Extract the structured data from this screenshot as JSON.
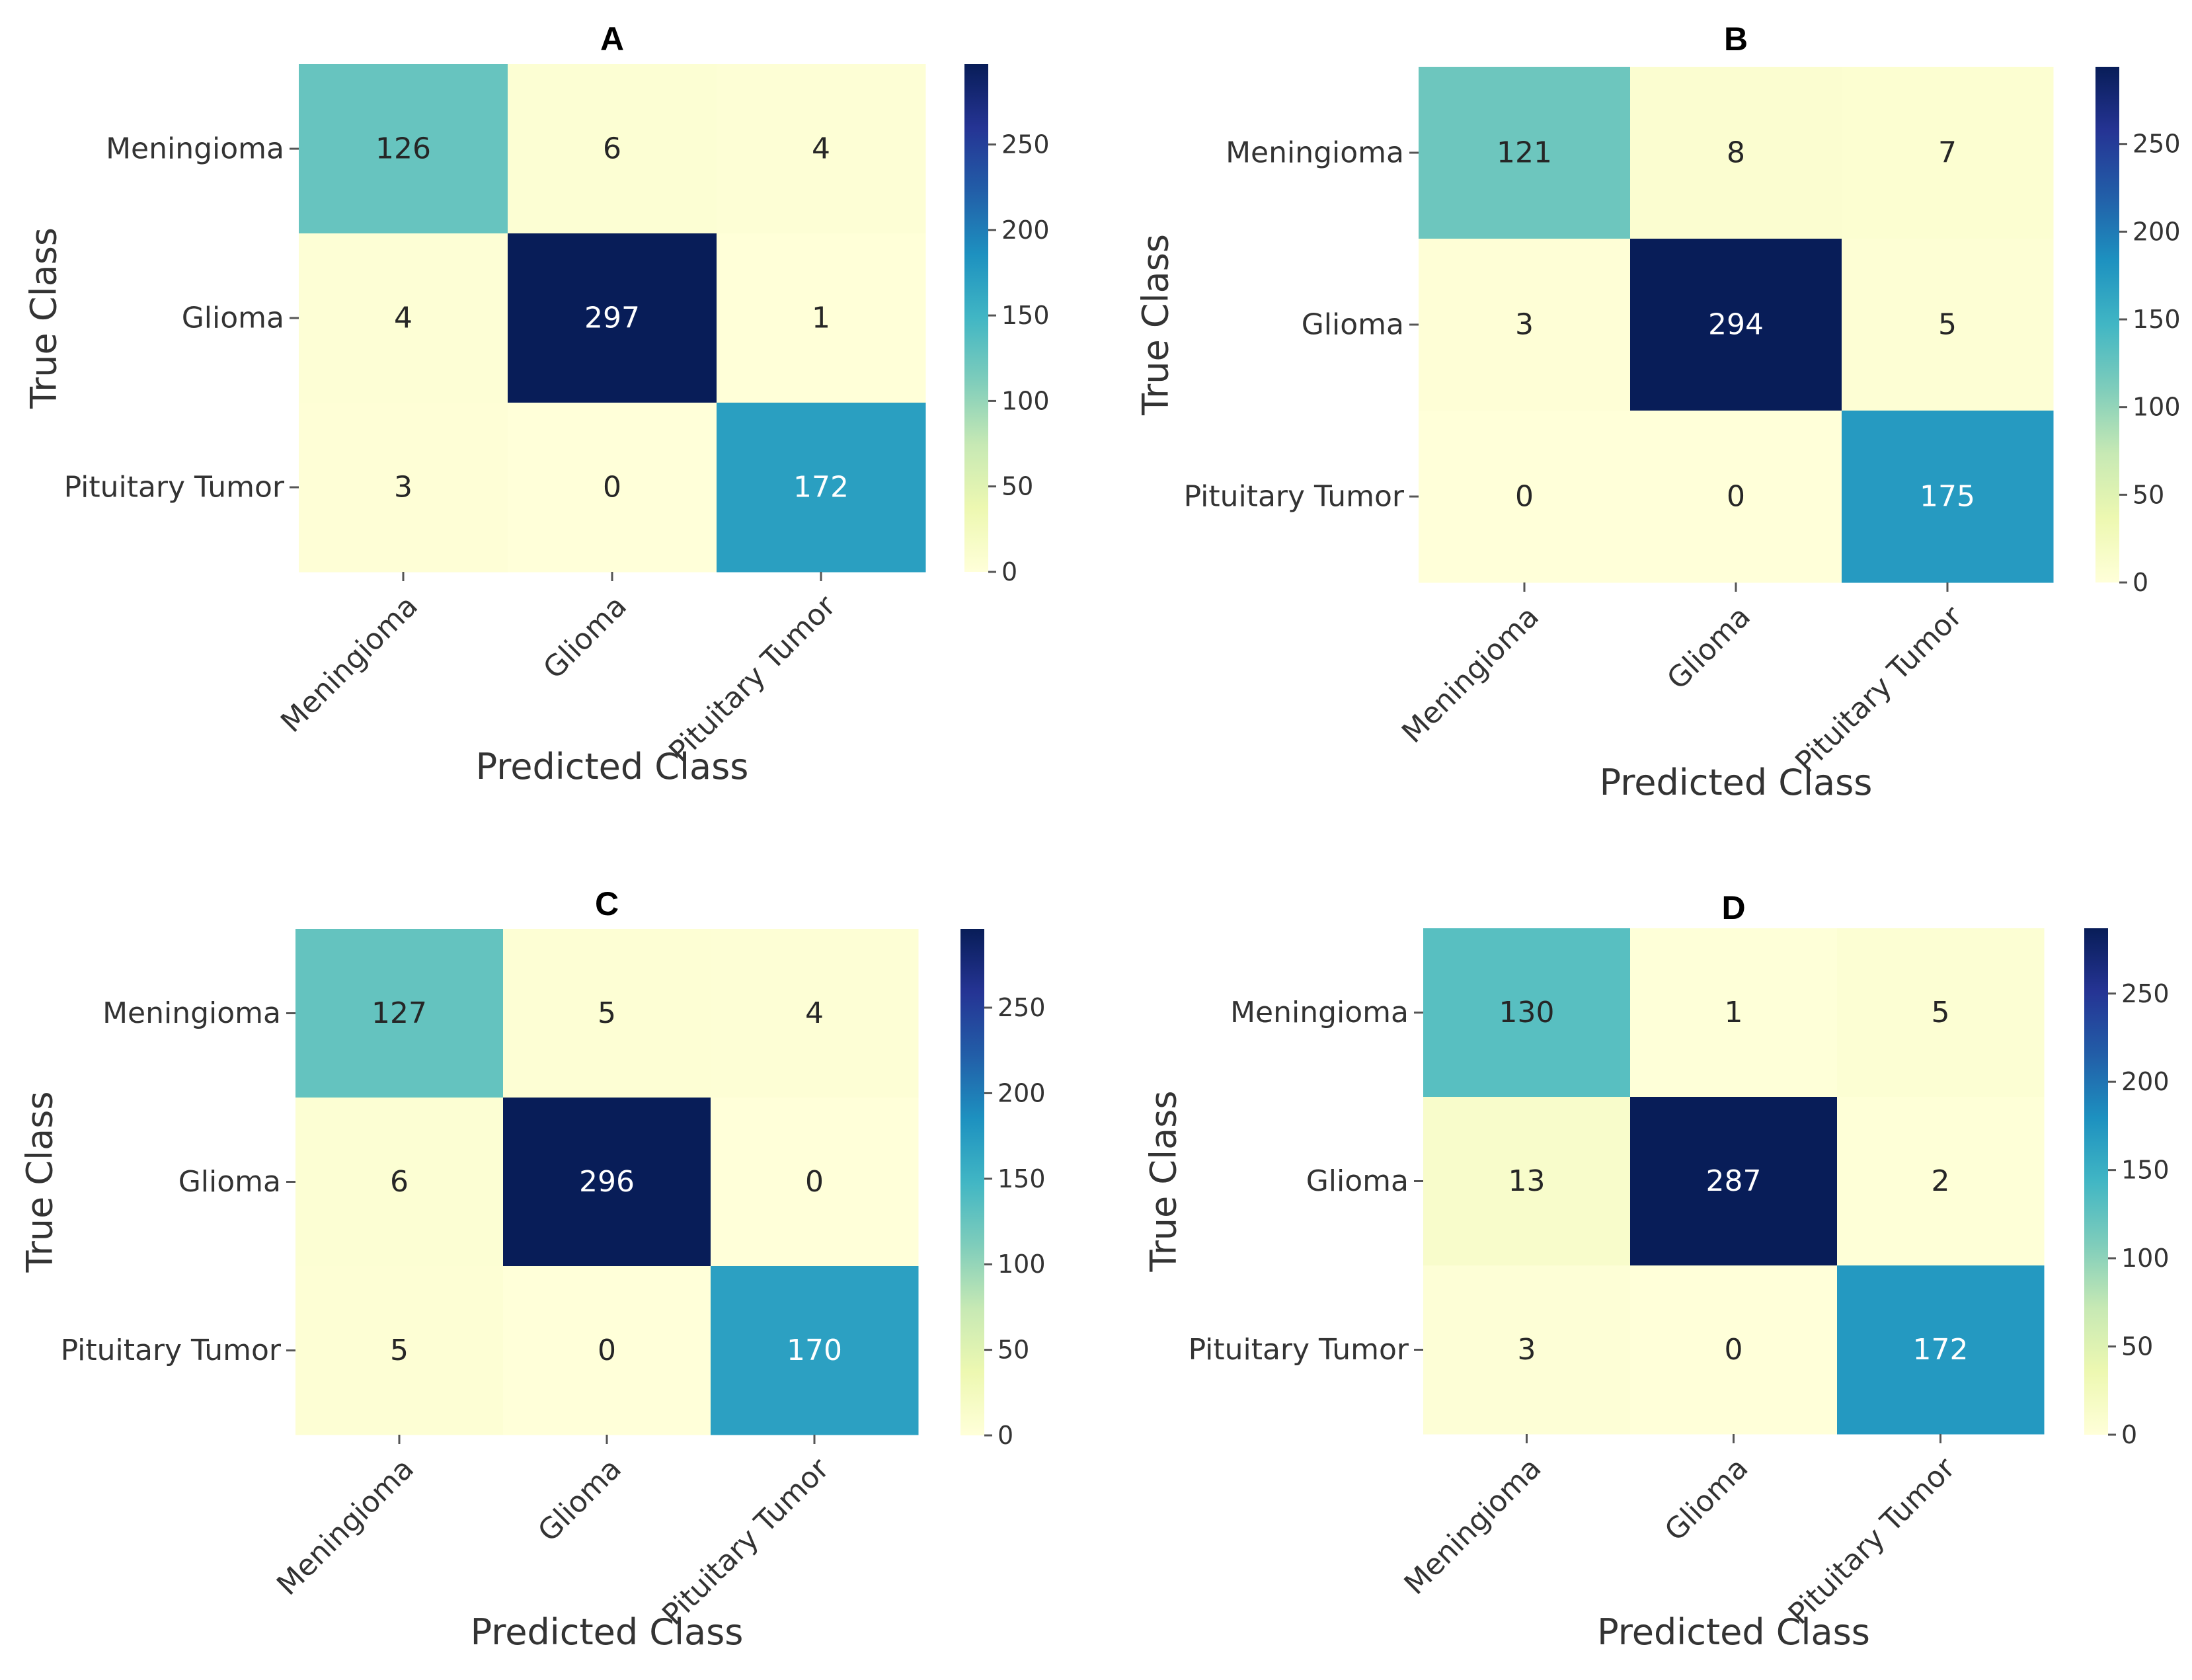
{
  "chart_data": [
    {
      "type": "heatmap",
      "title": "A",
      "xlabel": "Predicted Class",
      "ylabel": "True Class",
      "x_categories": [
        "Meningioma",
        "Glioma",
        "Pituitary Tumor"
      ],
      "y_categories": [
        "Meningioma",
        "Glioma",
        "Pituitary Tumor"
      ],
      "values": [
        [
          126,
          6,
          4
        ],
        [
          4,
          297,
          1
        ],
        [
          3,
          0,
          172
        ]
      ],
      "colorbar": {
        "min": 0,
        "max": 297,
        "ticks": [
          0,
          50,
          100,
          150,
          200,
          250
        ],
        "colormap": "YlGnBu"
      }
    },
    {
      "type": "heatmap",
      "title": "B",
      "xlabel": "Predicted Class",
      "ylabel": "True Class",
      "x_categories": [
        "Meningioma",
        "Glioma",
        "Pituitary Tumor"
      ],
      "y_categories": [
        "Meningioma",
        "Glioma",
        "Pituitary Tumor"
      ],
      "values": [
        [
          121,
          8,
          7
        ],
        [
          3,
          294,
          5
        ],
        [
          0,
          0,
          175
        ]
      ],
      "colorbar": {
        "min": 0,
        "max": 294,
        "ticks": [
          0,
          50,
          100,
          150,
          200,
          250
        ],
        "colormap": "YlGnBu"
      }
    },
    {
      "type": "heatmap",
      "title": "C",
      "xlabel": "Predicted Class",
      "ylabel": "True Class",
      "x_categories": [
        "Meningioma",
        "Glioma",
        "Pituitary Tumor"
      ],
      "y_categories": [
        "Meningioma",
        "Glioma",
        "Pituitary Tumor"
      ],
      "values": [
        [
          127,
          5,
          4
        ],
        [
          6,
          296,
          0
        ],
        [
          5,
          0,
          170
        ]
      ],
      "colorbar": {
        "min": 0,
        "max": 296,
        "ticks": [
          0,
          50,
          100,
          150,
          200,
          250
        ],
        "colormap": "YlGnBu"
      }
    },
    {
      "type": "heatmap",
      "title": "D",
      "xlabel": "Predicted Class",
      "ylabel": "True Class",
      "x_categories": [
        "Meningioma",
        "Glioma",
        "Pituitary Tumor"
      ],
      "y_categories": [
        "Meningioma",
        "Glioma",
        "Pituitary Tumor"
      ],
      "values": [
        [
          130,
          1,
          5
        ],
        [
          13,
          287,
          2
        ],
        [
          3,
          0,
          172
        ]
      ],
      "colorbar": {
        "min": 0,
        "max": 287,
        "ticks": [
          0,
          50,
          100,
          150,
          200,
          250
        ],
        "colormap": "YlGnBu"
      }
    }
  ]
}
